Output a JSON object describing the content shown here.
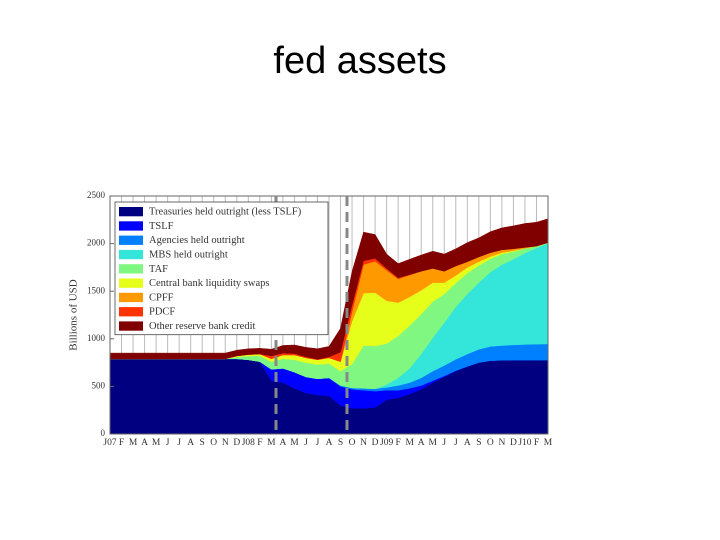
{
  "title": "fed assets",
  "chart_data": {
    "type": "stacked-area",
    "ylabel": "Billions of USD",
    "categories": [
      "J07",
      "F",
      "M",
      "A",
      "M",
      "J",
      "J",
      "A",
      "S",
      "O",
      "N",
      "D",
      "J08",
      "F",
      "M",
      "A",
      "M",
      "J",
      "J",
      "A",
      "S",
      "O",
      "N",
      "D",
      "J09",
      "F",
      "M",
      "A",
      "M",
      "J",
      "J",
      "A",
      "S",
      "O",
      "N",
      "D",
      "J10",
      "F",
      "M"
    ],
    "ylim": [
      0,
      2500
    ],
    "yticks": [
      0,
      500,
      1000,
      1500,
      2000,
      2500
    ],
    "grid": true,
    "legend": "upper-left",
    "series": [
      {
        "name": "Treasuries held outright (less TSLF)",
        "color": "#000080",
        "values": [
          790,
          790,
          790,
          790,
          790,
          790,
          790,
          790,
          790,
          790,
          790,
          790,
          780,
          760,
          560,
          540,
          480,
          430,
          410,
          400,
          300,
          270,
          270,
          280,
          360,
          380,
          420,
          470,
          540,
          600,
          660,
          710,
          750,
          770,
          775,
          776,
          776,
          776,
          776
        ]
      },
      {
        "name": "TSLF",
        "color": "#0000ff",
        "values": [
          0,
          0,
          0,
          0,
          0,
          0,
          0,
          0,
          0,
          0,
          0,
          0,
          0,
          0,
          120,
          150,
          170,
          170,
          170,
          190,
          200,
          200,
          190,
          170,
          100,
          80,
          60,
          40,
          20,
          10,
          5,
          0,
          0,
          0,
          0,
          0,
          0,
          0,
          0
        ]
      },
      {
        "name": "Agencies held outright",
        "color": "#0080ff",
        "values": [
          0,
          0,
          0,
          0,
          0,
          0,
          0,
          0,
          0,
          0,
          0,
          0,
          0,
          0,
          0,
          0,
          0,
          0,
          0,
          0,
          10,
          15,
          20,
          25,
          30,
          50,
          60,
          80,
          100,
          110,
          120,
          130,
          140,
          150,
          155,
          160,
          165,
          168,
          170
        ]
      },
      {
        "name": "MBS held outright",
        "color": "#33e6d9",
        "values": [
          0,
          0,
          0,
          0,
          0,
          0,
          0,
          0,
          0,
          0,
          0,
          0,
          0,
          0,
          0,
          0,
          0,
          0,
          0,
          0,
          0,
          0,
          0,
          0,
          30,
          80,
          150,
          250,
          350,
          450,
          550,
          630,
          700,
          780,
          850,
          900,
          960,
          1010,
          1060
        ]
      },
      {
        "name": "TAF",
        "color": "#80f780",
        "values": [
          0,
          0,
          0,
          0,
          0,
          0,
          0,
          0,
          0,
          0,
          0,
          20,
          40,
          60,
          80,
          100,
          130,
          150,
          150,
          150,
          150,
          250,
          450,
          450,
          430,
          440,
          450,
          420,
          380,
          300,
          250,
          220,
          180,
          140,
          110,
          80,
          50,
          20,
          5
        ]
      },
      {
        "name": "Central bank liquidity swaps",
        "color": "#e6ff1a",
        "values": [
          0,
          0,
          0,
          0,
          0,
          0,
          0,
          0,
          0,
          0,
          0,
          10,
          15,
          20,
          30,
          40,
          50,
          50,
          50,
          60,
          100,
          450,
          550,
          560,
          450,
          350,
          300,
          250,
          200,
          120,
          80,
          60,
          40,
          25,
          15,
          10,
          0,
          0,
          0
        ]
      },
      {
        "name": "CPFF",
        "color": "#ff9900",
        "values": [
          0,
          0,
          0,
          0,
          0,
          0,
          0,
          0,
          0,
          0,
          0,
          0,
          0,
          0,
          0,
          0,
          0,
          0,
          0,
          0,
          0,
          100,
          300,
          330,
          320,
          250,
          230,
          200,
          150,
          120,
          100,
          60,
          50,
          40,
          30,
          20,
          10,
          0,
          0
        ]
      },
      {
        "name": "PDCF",
        "color": "#ff3300",
        "values": [
          0,
          0,
          0,
          0,
          0,
          0,
          0,
          0,
          0,
          0,
          0,
          0,
          0,
          0,
          30,
          20,
          15,
          10,
          5,
          10,
          100,
          70,
          40,
          30,
          20,
          10,
          5,
          0,
          0,
          0,
          0,
          0,
          0,
          0,
          0,
          0,
          0,
          0,
          0
        ]
      },
      {
        "name": "Other reserve bank credit",
        "color": "#800000",
        "values": [
          60,
          60,
          60,
          60,
          60,
          60,
          60,
          60,
          60,
          60,
          60,
          60,
          60,
          60,
          70,
          80,
          90,
          100,
          110,
          110,
          250,
          350,
          300,
          250,
          150,
          150,
          160,
          170,
          180,
          180,
          180,
          200,
          200,
          220,
          230,
          240,
          250,
          250,
          250
        ]
      }
    ]
  }
}
